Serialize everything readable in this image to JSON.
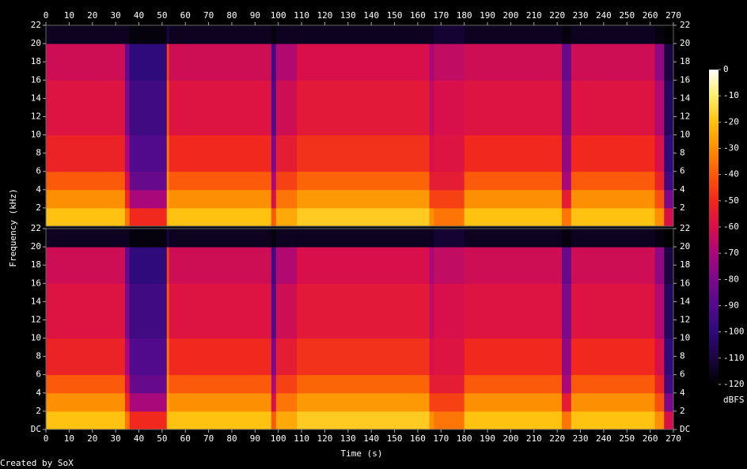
{
  "chart_data": {
    "type": "spectrogram",
    "x_label": "Time (s)",
    "y_label": "Frequency (kHz)",
    "footer": "Created by SoX",
    "xlim": [
      0,
      270
    ],
    "xticks": [
      0,
      10,
      20,
      30,
      40,
      50,
      60,
      70,
      80,
      90,
      100,
      110,
      120,
      130,
      140,
      150,
      160,
      170,
      180,
      190,
      200,
      210,
      220,
      230,
      240,
      250,
      260,
      270
    ],
    "time_bins": [
      0,
      34,
      36,
      52,
      53,
      97,
      99,
      108,
      165,
      167,
      180,
      222,
      226,
      262,
      266,
      270
    ],
    "freq_bins": [
      0,
      2,
      4,
      6,
      10,
      16,
      20,
      22
    ],
    "channels": [
      {
        "ylim": [
          0,
          22
        ],
        "yticks": [
          2,
          4,
          6,
          8,
          10,
          12,
          14,
          16,
          18,
          20,
          22
        ],
        "z": [
          [
            -20,
            -35,
            -50,
            -20,
            -20,
            -40,
            -25,
            -18,
            -30,
            -35,
            -20,
            -35,
            -20,
            -30,
            -60
          ],
          [
            -30,
            -50,
            -70,
            -25,
            -30,
            -60,
            -35,
            -28,
            -45,
            -45,
            -30,
            -55,
            -30,
            -42,
            -80
          ],
          [
            -40,
            -60,
            -85,
            -30,
            -40,
            -70,
            -45,
            -38,
            -55,
            -55,
            -40,
            -70,
            -40,
            -52,
            -95
          ],
          [
            -52,
            -70,
            -90,
            -35,
            -50,
            -80,
            -55,
            -48,
            -60,
            -58,
            -50,
            -75,
            -50,
            -60,
            -100
          ],
          [
            -58,
            -80,
            -95,
            -40,
            -58,
            -90,
            -62,
            -56,
            -65,
            -60,
            -58,
            -80,
            -58,
            -68,
            -105
          ],
          [
            -62,
            -85,
            -100,
            -45,
            -62,
            -95,
            -68,
            -60,
            -70,
            -65,
            -62,
            -85,
            -62,
            -75,
            -110
          ],
          [
            -115,
            -115,
            -118,
            -110,
            -115,
            -118,
            -115,
            -115,
            -115,
            -112,
            -115,
            -118,
            -115,
            -118,
            -120
          ]
        ]
      },
      {
        "ylim": [
          0,
          22
        ],
        "yticks": [
          {
            "value": 0,
            "label": "DC"
          },
          2,
          4,
          6,
          8,
          10,
          12,
          14,
          16,
          18,
          20,
          22
        ],
        "z": [
          [
            -20,
            -35,
            -50,
            -20,
            -20,
            -40,
            -25,
            -18,
            -30,
            -35,
            -20,
            -35,
            -20,
            -30,
            -60
          ],
          [
            -30,
            -50,
            -70,
            -25,
            -30,
            -60,
            -35,
            -28,
            -45,
            -45,
            -30,
            -55,
            -30,
            -42,
            -80
          ],
          [
            -40,
            -60,
            -85,
            -30,
            -40,
            -70,
            -45,
            -38,
            -55,
            -55,
            -40,
            -70,
            -40,
            -52,
            -95
          ],
          [
            -52,
            -70,
            -90,
            -35,
            -50,
            -80,
            -55,
            -48,
            -60,
            -58,
            -50,
            -75,
            -50,
            -60,
            -100
          ],
          [
            -58,
            -80,
            -95,
            -40,
            -58,
            -90,
            -62,
            -56,
            -65,
            -60,
            -58,
            -80,
            -58,
            -68,
            -105
          ],
          [
            -62,
            -85,
            -100,
            -45,
            -62,
            -95,
            -68,
            -60,
            -70,
            -65,
            -62,
            -85,
            -62,
            -75,
            -110
          ],
          [
            -115,
            -115,
            -118,
            -110,
            -115,
            -118,
            -115,
            -115,
            -115,
            -112,
            -115,
            -118,
            -115,
            -118,
            -120
          ]
        ]
      }
    ],
    "colorbar": {
      "label": "dBFS",
      "lim": [
        -120,
        0
      ],
      "ticks": [
        0,
        -10,
        -20,
        -30,
        -40,
        -50,
        -60,
        -70,
        -80,
        -90,
        -100,
        -110,
        -120
      ],
      "colors": [
        "#000000",
        "#1a0540",
        "#2e0a7a",
        "#520a8c",
        "#7a0a8a",
        "#a8087a",
        "#d80f4a",
        "#f0281e",
        "#fa5a0a",
        "#fd8f02",
        "#ffc210",
        "#ffef6a",
        "#ffffff"
      ]
    }
  }
}
